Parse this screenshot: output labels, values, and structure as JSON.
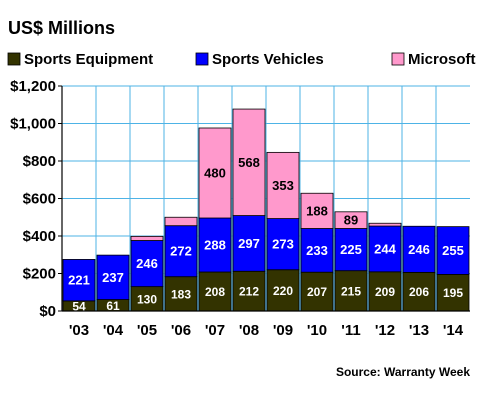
{
  "chart_data": {
    "type": "bar",
    "stacked": true,
    "title": "US$ Millions",
    "source": "Source: Warranty Week",
    "categories": [
      "'03",
      "'04",
      "'05",
      "'06",
      "'07",
      "'08",
      "'09",
      "'10",
      "'11",
      "'12",
      "'13",
      "'14"
    ],
    "series": [
      {
        "name": "Sports Equipment",
        "color": "#333300",
        "values": [
          54,
          61,
          130,
          183,
          208,
          212,
          220,
          207,
          215,
          209,
          206,
          195
        ],
        "labels": [
          "54",
          "61",
          "130",
          "183",
          "208",
          "212",
          "220",
          "207",
          "215",
          "209",
          "206",
          "195"
        ]
      },
      {
        "name": "Sports Vehicles",
        "color": "#0000ff",
        "values": [
          221,
          237,
          246,
          272,
          288,
          297,
          273,
          233,
          225,
          244,
          246,
          255
        ],
        "labels": [
          "221",
          "237",
          "246",
          "272",
          "288",
          "297",
          "273",
          "233",
          "225",
          "244",
          "246",
          "255"
        ]
      },
      {
        "name": "Microsoft",
        "color": "#ff99cc",
        "values": [
          0,
          0,
          22,
          45,
          480,
          568,
          353,
          188,
          89,
          15,
          0,
          0
        ],
        "labels": [
          "",
          "",
          "",
          "",
          "480",
          "568",
          "353",
          "188",
          "89",
          "",
          "",
          ""
        ]
      }
    ],
    "yticks": [
      0,
      200,
      400,
      600,
      800,
      1000,
      1200
    ],
    "ytick_labels": [
      "$0",
      "$200",
      "$400",
      "$600",
      "$800",
      "$1,000",
      "$1,200"
    ],
    "ylim": [
      0,
      1200
    ],
    "grid": true,
    "legend_position": "top"
  }
}
